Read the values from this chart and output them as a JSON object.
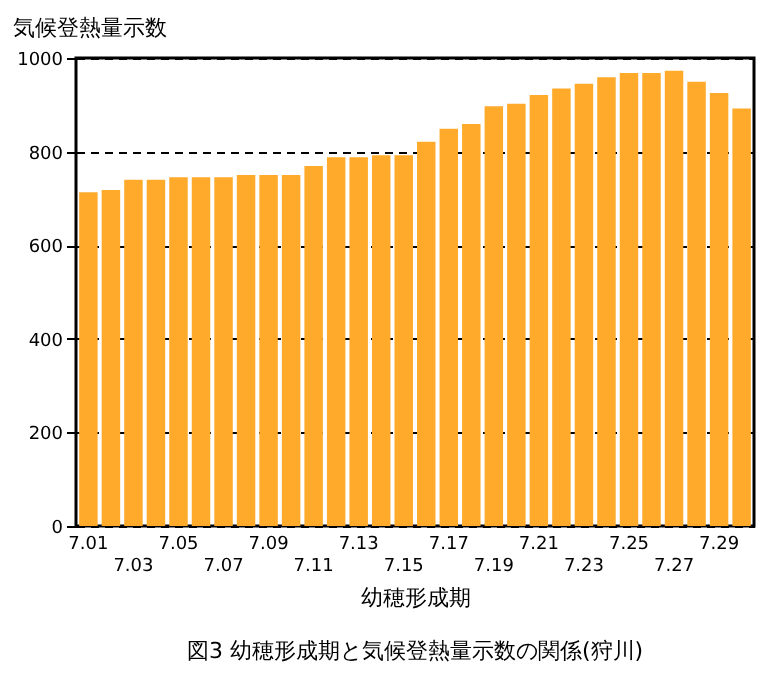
{
  "chart_data": {
    "type": "bar",
    "title": "図3  幼穂形成期と気候登熱量示数の関係(狩川)",
    "xlabel": "幼穂形成期",
    "ylabel": "気候登熱量示数",
    "categories": [
      "7.01",
      null,
      "7.03",
      null,
      "7.05",
      null,
      "7.07",
      null,
      "7.09",
      null,
      "7.11",
      null,
      "7.13",
      null,
      "7.15",
      null,
      "7.17",
      null,
      "7.19",
      null,
      "7.21",
      null,
      "7.23",
      null,
      "7.25",
      null,
      "7.27",
      null,
      "7.29",
      null
    ],
    "values": [
      713,
      718,
      740,
      740,
      745,
      745,
      745,
      750,
      750,
      750,
      769,
      788,
      788,
      792,
      792,
      821,
      849,
      859,
      897,
      902,
      921,
      935,
      945,
      959,
      968,
      968,
      973,
      949,
      925,
      892
    ],
    "color": "#ffaa2a",
    "ylim": [
      0,
      1000
    ],
    "yticks": [
      0,
      200,
      400,
      600,
      800,
      1000
    ],
    "grid": "y"
  }
}
